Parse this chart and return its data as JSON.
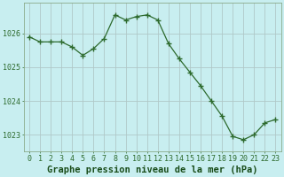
{
  "x": [
    0,
    1,
    2,
    3,
    4,
    5,
    6,
    7,
    8,
    9,
    10,
    11,
    12,
    13,
    14,
    15,
    16,
    17,
    18,
    19,
    20,
    21,
    22,
    23
  ],
  "y": [
    1025.9,
    1025.75,
    1025.75,
    1025.75,
    1025.6,
    1025.35,
    1025.55,
    1025.85,
    1026.55,
    1026.4,
    1026.5,
    1026.55,
    1026.4,
    1025.7,
    1025.25,
    1024.85,
    1024.45,
    1024.0,
    1023.55,
    1022.95,
    1022.85,
    1023.0,
    1023.35,
    1023.45
  ],
  "line_color": "#2d6a2d",
  "marker_color": "#2d6a2d",
  "bg_color": "#c8eef0",
  "grid_color": "#b0c8c8",
  "title": "Graphe pression niveau de la mer (hPa)",
  "ylim": [
    1022.5,
    1026.9
  ],
  "yticks": [
    1023,
    1024,
    1025,
    1026
  ],
  "xticks": [
    0,
    1,
    2,
    3,
    4,
    5,
    6,
    7,
    8,
    9,
    10,
    11,
    12,
    13,
    14,
    15,
    16,
    17,
    18,
    19,
    20,
    21,
    22,
    23
  ],
  "xlim": [
    -0.5,
    23.5
  ],
  "title_fontsize": 7.5,
  "tick_fontsize": 6,
  "title_color": "#1a4d1a",
  "tick_color": "#2d6a2d",
  "spine_color": "#8aaa8a"
}
